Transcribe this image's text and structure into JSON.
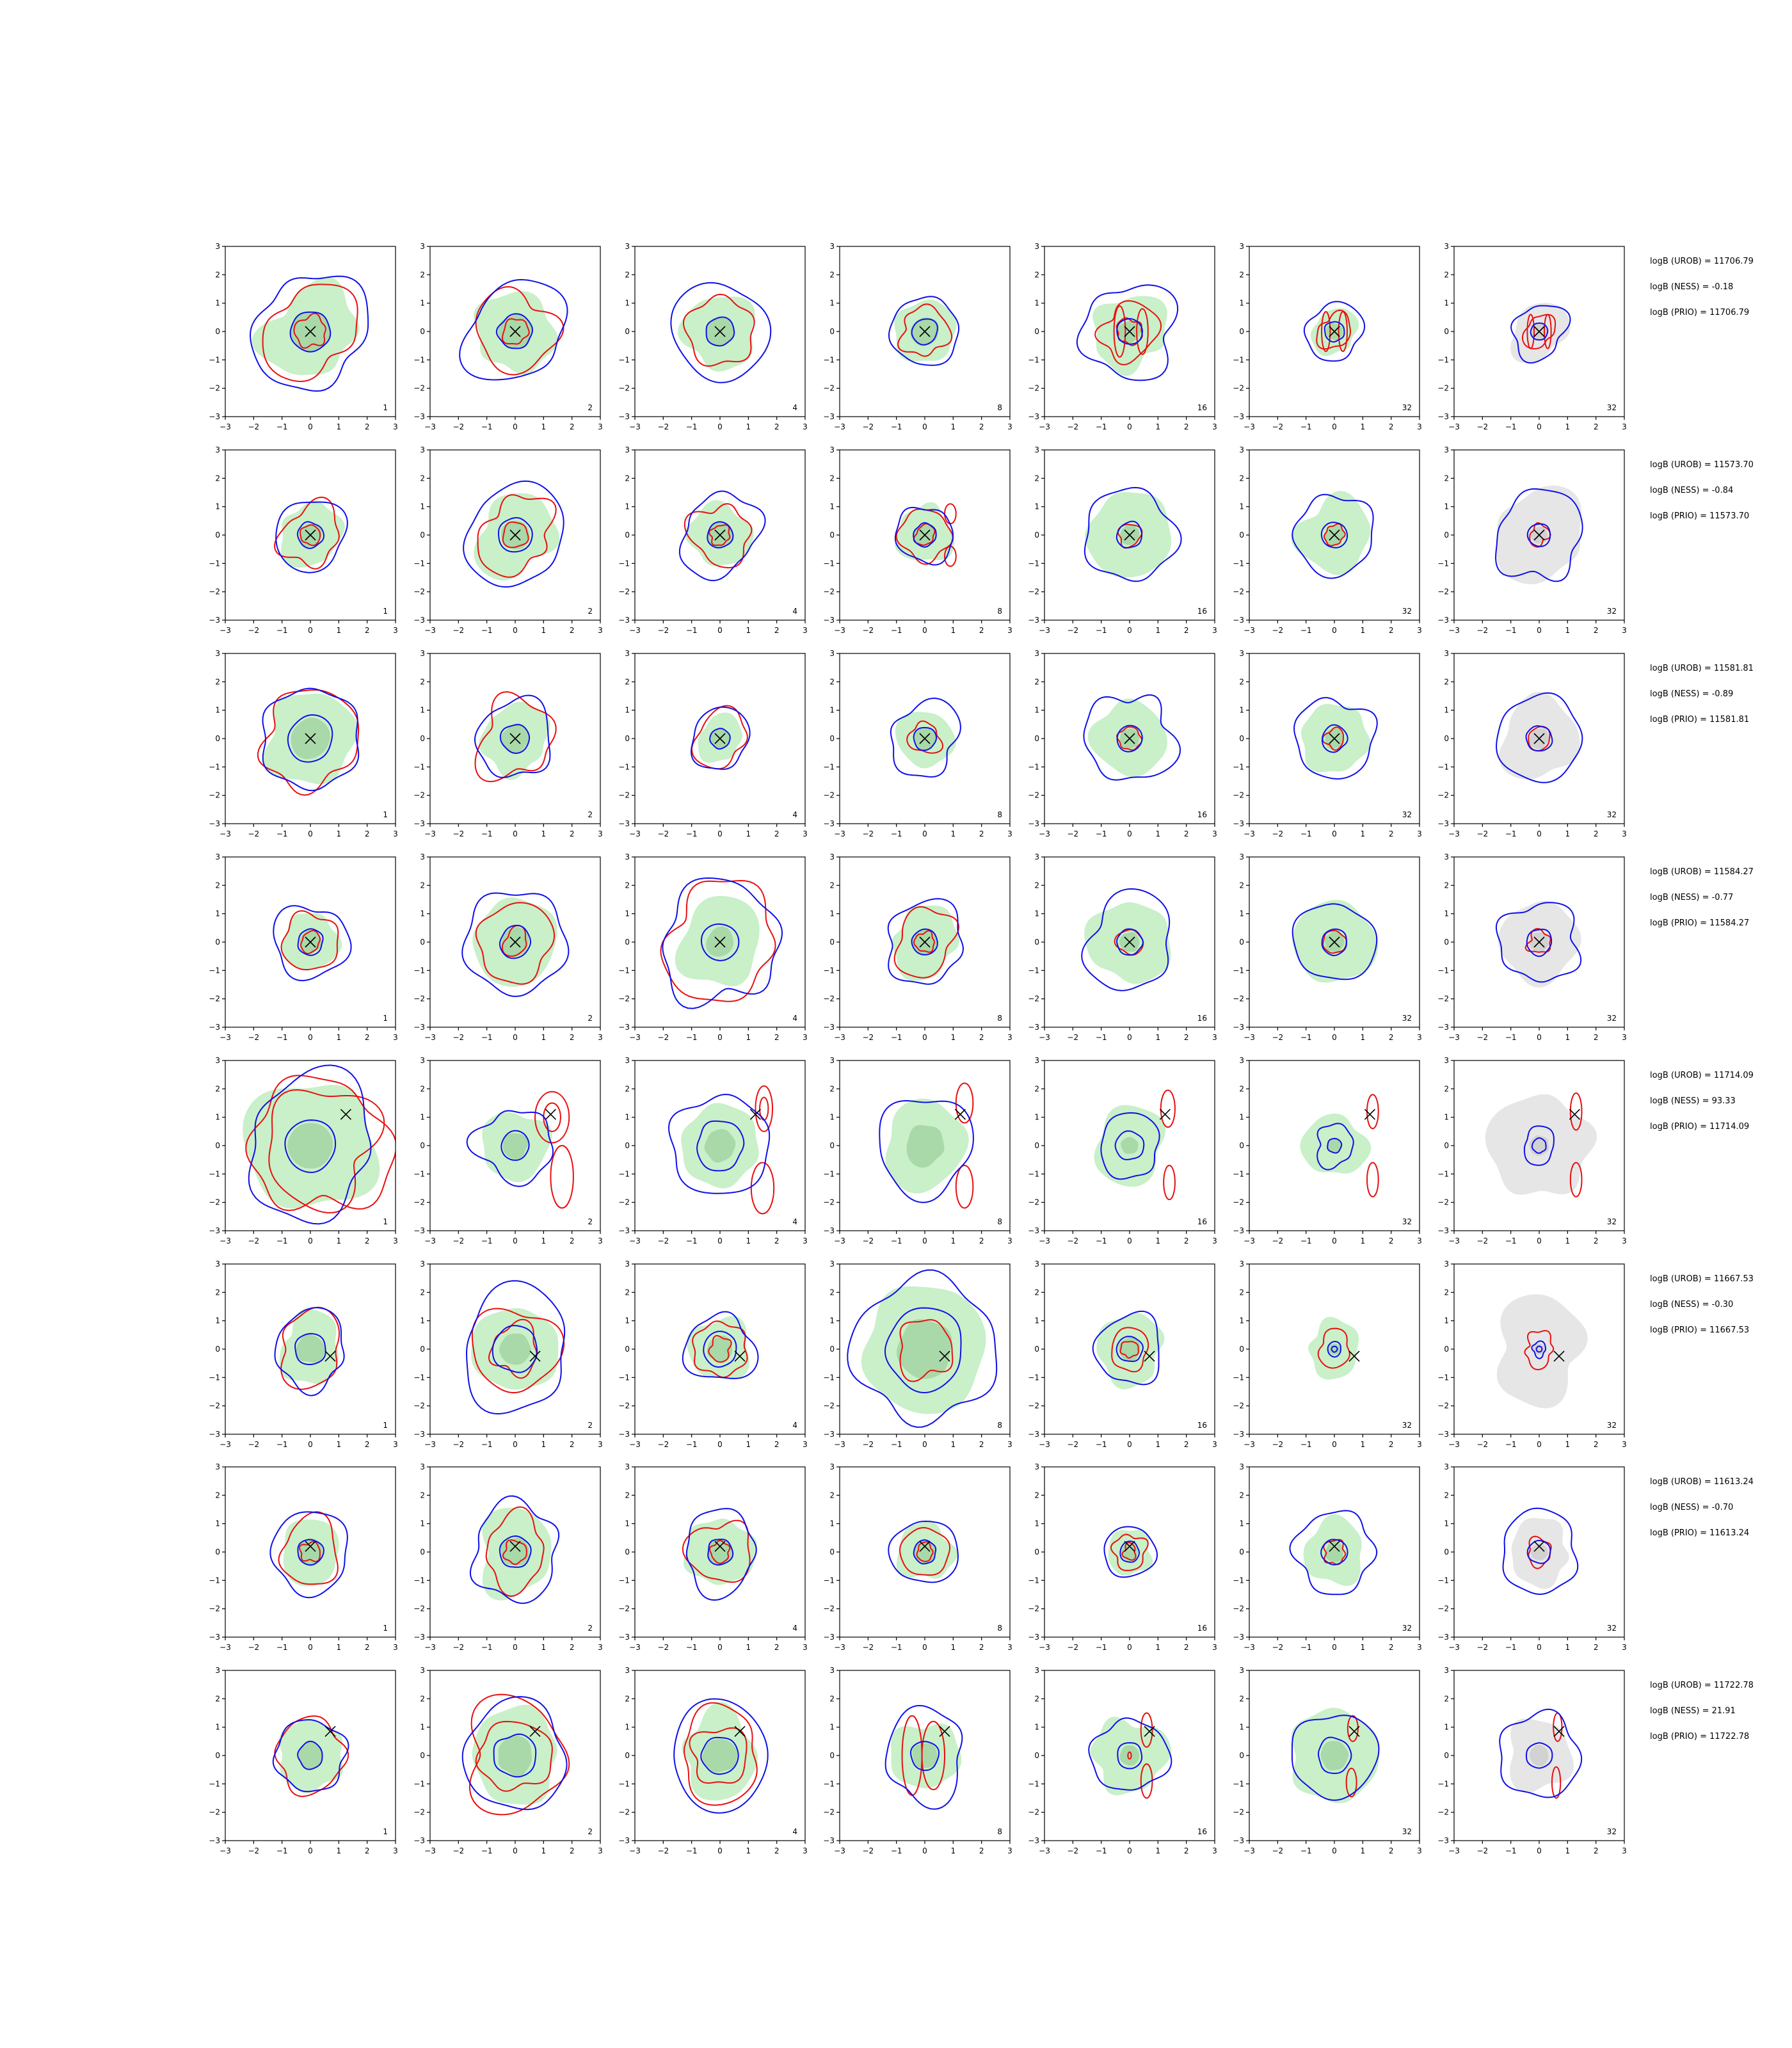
{
  "chart_data": {
    "type": "contour-grid",
    "rows": 8,
    "cols": 7,
    "xlim": [
      -3,
      3
    ],
    "ylim": [
      -3,
      3
    ],
    "ticks": [
      -3,
      -2,
      -1,
      0,
      1,
      2,
      3
    ],
    "tick_labels": [
      "−3",
      "−2",
      "−1",
      "0",
      "1",
      "2",
      "3"
    ],
    "panel_labels": [
      "1",
      "2",
      "4",
      "8",
      "16",
      "32",
      "32"
    ],
    "colors": {
      "blue_contour": "#1010e8",
      "red_contour": "#e81010",
      "green_fill": "#c9f0c9",
      "green_fill_dark": "#a9d8a9",
      "gray_fill": "#e6e6e6",
      "gray_fill_dark": "#d2d2d2",
      "marker": "#000000"
    },
    "marker_shape": "x",
    "rows_data": [
      {
        "annotations": [
          "logB (UROB) = 11706.79",
          "logB (NESS) = -0.18",
          "logB (PRIO) = 11706.79"
        ],
        "marker": [
          0,
          0
        ],
        "panels": [
          {
            "fill": 1.6,
            "core": 0.7,
            "blue": [
              2.0,
              0.7
            ],
            "red": [
              1.6,
              0.55
            ]
          },
          {
            "fill": 1.4,
            "core": 0.6,
            "blue": [
              1.75,
              0.6
            ],
            "red": [
              1.4,
              0.45
            ]
          },
          {
            "fill": 1.3,
            "core": 0.5,
            "blue": [
              1.7,
              0.5
            ],
            "red": [
              1.2
            ]
          },
          {
            "fill": 1.1,
            "core": 0.5,
            "blue": [
              1.2,
              0.45
            ],
            "red": [
              0.85
            ]
          },
          {
            "fill": 1.3,
            "core": 0.4,
            "blue": [
              1.65,
              0.45
            ],
            "red": [
              1.0,
              0.45
            ],
            "red_lobes": [
              [
                -0.35,
                0,
                0.2,
                0.9
              ],
              [
                0.45,
                0,
                0.2,
                0.8
              ]
            ]
          },
          {
            "fill": 0.8,
            "core": 0.3,
            "blue": [
              1.0,
              0.35
            ],
            "red": [
              0.6
            ],
            "red_lobes": [
              [
                -0.3,
                0,
                0.15,
                0.7
              ],
              [
                0.3,
                0,
                0.15,
                0.7
              ]
            ]
          },
          {
            "fill": 1.0,
            "core": 0.3,
            "blue": [
              0.95,
              0.3
            ],
            "red": [
              0.55
            ],
            "red_lobes": [
              [
                -0.3,
                0,
                0.12,
                0.6
              ],
              [
                0.3,
                0,
                0.12,
                0.6
              ]
            ],
            "gray": true
          }
        ]
      },
      {
        "annotations": [
          "logB (UROB) = 11573.70",
          "logB (NESS) = -0.84",
          "logB (PRIO) = 11573.70"
        ],
        "marker": [
          0,
          0
        ],
        "panels": [
          {
            "fill": 1.1,
            "core": 0.4,
            "blue": [
              1.25,
              0.45
            ],
            "red": [
              1.05,
              0.35
            ]
          },
          {
            "fill": 1.4,
            "core": 0.5,
            "blue": [
              1.75,
              0.6
            ],
            "red": [
              1.3,
              0.45
            ]
          },
          {
            "fill": 1.1,
            "core": 0.45,
            "blue": [
              1.4,
              0.45
            ],
            "red": [
              1.05,
              0.35
            ]
          },
          {
            "fill": 1.0,
            "core": 0.4,
            "blue": [
              1.0,
              0.4
            ],
            "red": [
              0.9,
              0.35
            ],
            "red_lobes": [
              [
                0.9,
                0.75,
                0.2,
                0.35
              ],
              [
                0.9,
                -0.75,
                0.2,
                0.35
              ]
            ]
          },
          {
            "fill": 1.5,
            "core": 0.35,
            "blue": [
              1.6,
              0.45
            ],
            "red": [
              0.4
            ]
          },
          {
            "fill": 1.3,
            "core": 0.35,
            "blue": [
              1.4,
              0.45
            ],
            "red": [
              0.35
            ]
          },
          {
            "fill": 1.6,
            "core": 0.3,
            "blue": [
              1.55,
              0.4
            ],
            "red": [
              0.35
            ],
            "gray": true
          }
        ]
      },
      {
        "annotations": [
          "logB (UROB) = 11581.81",
          "logB (NESS) = -0.89",
          "logB (PRIO) = 11581.81"
        ],
        "marker": [
          0,
          0
        ],
        "panels": [
          {
            "fill": 1.6,
            "core": 0.7,
            "blue": [
              1.75,
              0.8
            ],
            "red": [
              1.7
            ]
          },
          {
            "fill": 1.2,
            "core": 0.5,
            "blue": [
              1.35,
              0.5
            ],
            "red": [
              1.35
            ]
          },
          {
            "fill": 0.8,
            "core": 0.35,
            "blue": [
              1.05,
              0.35
            ],
            "red": [
              0.95
            ]
          },
          {
            "fill": 1.0,
            "core": 0.4,
            "blue": [
              1.25,
              0.4
            ],
            "red": [
              0.55
            ]
          },
          {
            "fill": 1.3,
            "core": 0.35,
            "blue": [
              1.55,
              0.45
            ],
            "red": [
              0.4
            ]
          },
          {
            "fill": 1.2,
            "core": 0.35,
            "blue": [
              1.4,
              0.45
            ],
            "red": [
              0.35
            ]
          },
          {
            "fill": 1.4,
            "core": 0.35,
            "blue": [
              1.5,
              0.45
            ],
            "red": [
              0.4
            ],
            "gray": true
          }
        ]
      },
      {
        "annotations": [
          "logB (UROB) = 11584.27",
          "logB (NESS) = -0.77",
          "logB (PRIO) = 11584.27"
        ],
        "marker": [
          0,
          0
        ],
        "panels": [
          {
            "fill": 1.0,
            "core": 0.4,
            "blue": [
              1.3,
              0.45
            ],
            "red": [
              1.0,
              0.35
            ]
          },
          {
            "fill": 1.5,
            "core": 0.5,
            "blue": [
              1.8,
              0.55
            ],
            "red": [
              1.35,
              0.45
            ]
          },
          {
            "fill": 1.5,
            "core": 0.5,
            "blue": [
              2.1,
              0.65
            ],
            "red": [
              2.0
            ]
          },
          {
            "fill": 1.2,
            "core": 0.45,
            "blue": [
              1.4,
              0.45
            ],
            "red": [
              1.1,
              0.35
            ]
          },
          {
            "fill": 1.45,
            "core": 0.35,
            "blue": [
              1.6,
              0.45
            ],
            "red": [
              0.45
            ]
          },
          {
            "fill": 1.45,
            "core": 0.35,
            "blue": [
              1.4,
              0.45
            ],
            "red": [
              0.4
            ]
          },
          {
            "fill": 1.4,
            "core": 0.35,
            "blue": [
              1.4,
              0.45
            ],
            "red": [
              0.4
            ],
            "gray": true
          }
        ]
      },
      {
        "annotations": [
          "logB (UROB) = 11714.09",
          "logB (NESS) = 93.33",
          "logB (PRIO) = 11714.09"
        ],
        "marker": [
          1.25,
          1.1
        ],
        "panels": [
          {
            "fill": 2.3,
            "core": 0.8,
            "blue": [
              2.35,
              0.9
            ],
            "red": [
              2.4,
              2.0
            ],
            "red_center": [
              0.35,
              0
            ]
          },
          {
            "fill": 1.2,
            "core": 0.45,
            "blue": [
              1.3,
              0.5
            ],
            "red_lobes": [
              [
                1.3,
                1.0,
                0.6,
                0.9
              ],
              [
                1.65,
                -1.1,
                0.4,
                1.1
              ],
              [
                1.3,
                1.0,
                0.3,
                0.5
              ]
            ]
          },
          {
            "fill": 1.4,
            "core": 0.55,
            "blue": [
              1.75,
              0.85
            ],
            "red_lobes": [
              [
                1.55,
                1.3,
                0.3,
                0.8
              ],
              [
                1.5,
                -1.5,
                0.4,
                0.9
              ],
              [
                1.55,
                1.3,
                0.15,
                0.4
              ]
            ]
          },
          {
            "fill": 1.5,
            "core": 0.7,
            "blue": [
              1.7
            ],
            "red_lobes": [
              [
                1.4,
                1.5,
                0.3,
                0.7
              ],
              [
                1.4,
                -1.45,
                0.3,
                0.75
              ]
            ]
          },
          {
            "fill": 1.3,
            "core": 0.3,
            "blue": [
              1.1,
              0.5
            ],
            "red_lobes": [
              [
                1.35,
                1.3,
                0.25,
                0.65
              ],
              [
                1.4,
                -1.3,
                0.2,
                0.6
              ]
            ]
          },
          {
            "fill": 1.1,
            "core": 0.25,
            "blue": [
              0.7,
              0.25
            ],
            "red_lobes": [
              [
                1.35,
                1.2,
                0.2,
                0.6
              ],
              [
                1.35,
                -1.2,
                0.2,
                0.6
              ]
            ]
          },
          {
            "fill": 1.8,
            "core": 0.35,
            "blue": [
              0.6,
              0.25
            ],
            "red_lobes": [
              [
                1.3,
                1.2,
                0.2,
                0.65
              ],
              [
                1.3,
                -1.2,
                0.2,
                0.6
              ]
            ],
            "gray": true
          }
        ]
      },
      {
        "annotations": [
          "logB (UROB) = 11667.53",
          "logB (NESS) = -0.30",
          "logB (PRIO) = 11667.53"
        ],
        "marker": [
          0.7,
          -0.25
        ],
        "panels": [
          {
            "fill": 1.15,
            "core": 0.5,
            "blue": [
              1.3,
              0.55
            ],
            "red": [
              1.2
            ]
          },
          {
            "fill": 1.5,
            "core": 0.55,
            "blue": [
              2.0,
              0.8
            ],
            "red": [
              1.5,
              0.85
            ]
          },
          {
            "fill": 1.1,
            "core": 0.45,
            "blue": [
              1.2,
              0.6
            ],
            "red": [
              0.95,
              0.4
            ]
          },
          {
            "fill": 2.2,
            "core": 1.0,
            "blue": [
              2.5,
              1.4
            ],
            "red": [
              1.0
            ]
          },
          {
            "fill": 1.2,
            "core": 0.4,
            "blue": [
              1.2,
              0.45
            ],
            "red": [
              0.7,
              0.3
            ]
          },
          {
            "fill": 0.95,
            "core": 0.2,
            "blue": [
              0.25,
              0.1
            ],
            "red": [
              0.6
            ]
          },
          {
            "fill": 1.7,
            "core": 0.2,
            "blue": [
              0.25,
              0.1
            ],
            "red": [
              0.55
            ],
            "gray": true
          }
        ]
      },
      {
        "annotations": [
          "logB (UROB) = 11613.24",
          "logB (NESS) = -0.70",
          "logB (PRIO) = 11613.24"
        ],
        "marker": [
          0,
          0.2
        ],
        "panels": [
          {
            "fill": 1.1,
            "core": 0.45,
            "blue": [
              1.4,
              0.45
            ],
            "red": [
              1.1,
              0.35
            ]
          },
          {
            "fill": 1.4,
            "core": 0.5,
            "blue": [
              1.6,
              0.55
            ],
            "red": [
              1.15,
              0.4
            ]
          },
          {
            "fill": 1.2,
            "core": 0.45,
            "blue": [
              1.35,
              0.45
            ],
            "red": [
              1.1,
              0.35
            ]
          },
          {
            "fill": 1.0,
            "core": 0.4,
            "blue": [
              1.15,
              0.4
            ],
            "red": [
              0.85,
              0.3
            ]
          },
          {
            "fill": 0.8,
            "core": 0.3,
            "blue": [
              0.9,
              0.35
            ],
            "red": [
              0.6,
              0.25
            ]
          },
          {
            "fill": 1.1,
            "core": 0.35,
            "blue": [
              1.4,
              0.45
            ],
            "red": [
              0.4
            ]
          },
          {
            "fill": 1.1,
            "core": 0.3,
            "blue": [
              1.4,
              0.4
            ],
            "red": [
              0.45
            ],
            "gray": true
          }
        ]
      },
      {
        "annotations": [
          "logB (UROB) = 11722.78",
          "logB (NESS) = 21.91",
          "logB (PRIO) = 11722.78"
        ],
        "marker": [
          0.7,
          0.85
        ],
        "panels": [
          {
            "fill": 1.2,
            "core": 0.45,
            "blue": [
              1.25,
              0.45
            ],
            "red": [
              1.25
            ]
          },
          {
            "fill": 1.6,
            "core": 0.65,
            "blue": [
              1.85,
              0.75
            ],
            "red": [
              1.85,
              1.25
            ]
          },
          {
            "fill": 1.4,
            "core": 0.6,
            "blue": [
              1.8,
              0.65
            ],
            "red": [
              1.5,
              1.0
            ]
          },
          {
            "fill": 1.2,
            "core": 0.45,
            "blue": [
              1.5,
              0.5
            ],
            "red_lobes": [
              [
                -0.45,
                0,
                0.35,
                1.4
              ],
              [
                0.3,
                0,
                0.4,
                1.2
              ]
            ]
          },
          {
            "fill": 1.3,
            "core": 0.35,
            "blue": [
              1.3,
              0.45
            ],
            "red_lobes": [
              [
                0.6,
                0.9,
                0.2,
                0.6
              ],
              [
                0.6,
                -0.9,
                0.2,
                0.6
              ],
              [
                0.0,
                0.0,
                0.06,
                0.12
              ]
            ]
          },
          {
            "fill": 1.6,
            "core": 0.5,
            "blue": [
              1.5,
              0.6
            ],
            "red_lobes": [
              [
                0.65,
                0.95,
                0.18,
                0.45
              ],
              [
                0.6,
                -0.95,
                0.18,
                0.5
              ]
            ]
          },
          {
            "fill": 1.2,
            "core": 0.35,
            "blue": [
              1.45,
              0.45
            ],
            "red_lobes": [
              [
                0.65,
                1.0,
                0.15,
                0.5
              ],
              [
                0.6,
                -0.95,
                0.15,
                0.55
              ]
            ],
            "gray": true
          }
        ]
      }
    ]
  }
}
